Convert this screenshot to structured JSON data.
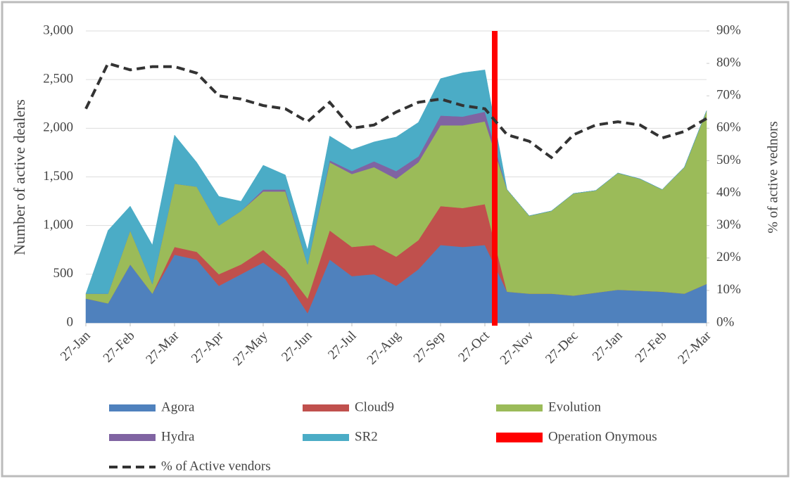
{
  "chart_data": {
    "type": "stacked-area",
    "y_axis_label": "Number of active dealers",
    "y2_axis_label": "% of active vednors",
    "categories": [
      "27-Jan",
      null,
      "27-Feb",
      null,
      "27-Mar",
      null,
      "27-Apr",
      null,
      "27-May",
      null,
      "27-Jun",
      null,
      "27-Jul",
      null,
      "27-Aug",
      null,
      "27-Sep",
      null,
      "27-Oct",
      null,
      "27-Nov",
      null,
      "27-Dec",
      null,
      "27-Jan",
      null,
      "27-Feb",
      null,
      "27-Mar"
    ],
    "series": [
      {
        "name": "Agora",
        "color": "#4f81bd",
        "values": [
          250,
          200,
          600,
          300,
          700,
          650,
          380,
          500,
          620,
          450,
          100,
          650,
          480,
          500,
          380,
          550,
          800,
          780,
          800,
          320,
          300,
          300,
          280,
          310,
          340,
          330,
          320,
          300,
          400
        ]
      },
      {
        "name": "Cloud9",
        "color": "#c0504d",
        "values": [
          0,
          0,
          0,
          0,
          80,
          80,
          120,
          100,
          130,
          100,
          150,
          300,
          300,
          300,
          300,
          300,
          400,
          400,
          420,
          0,
          0,
          0,
          0,
          0,
          0,
          0,
          0,
          0,
          0
        ]
      },
      {
        "name": "Evolution",
        "color": "#9bbb59",
        "values": [
          50,
          100,
          350,
          100,
          650,
          670,
          500,
          550,
          600,
          800,
          350,
          700,
          750,
          800,
          800,
          800,
          830,
          850,
          850,
          1050,
          800,
          850,
          1050,
          1050,
          1200,
          1150,
          1050,
          1300,
          1780
        ]
      },
      {
        "name": "Hydra",
        "color": "#8064a2",
        "values": [
          0,
          0,
          0,
          0,
          0,
          0,
          0,
          0,
          20,
          20,
          0,
          20,
          30,
          60,
          80,
          60,
          100,
          90,
          100,
          0,
          0,
          0,
          0,
          0,
          0,
          0,
          0,
          0,
          0
        ]
      },
      {
        "name": "SR2",
        "color": "#4bacc6",
        "values": [
          0,
          650,
          250,
          400,
          500,
          250,
          300,
          100,
          250,
          150,
          150,
          250,
          220,
          200,
          350,
          350,
          380,
          450,
          430,
          0,
          0,
          0,
          0,
          0,
          0,
          0,
          0,
          0,
          0
        ]
      },
      {
        "name": "Operation Onymous",
        "color": "#ff0000",
        "type": "vline"
      },
      {
        "name": "% of Active vendors",
        "color": "#333333",
        "type": "line",
        "dashed": true,
        "axis": "y2",
        "values": [
          66,
          80,
          78,
          79,
          79,
          77,
          70,
          69,
          67,
          66,
          62,
          68,
          60,
          61,
          65,
          68,
          69,
          67,
          66,
          58,
          56,
          51,
          58,
          61,
          62,
          61,
          57,
          59,
          63
        ]
      }
    ],
    "ylim": [
      0,
      3000
    ],
    "yticks": [
      0,
      500,
      {
        "value": 1000,
        "label": "1,000"
      },
      {
        "value": 1500,
        "label": "1,500"
      },
      {
        "value": 2000,
        "label": "2,000"
      },
      {
        "value": 2500,
        "label": "2,500"
      },
      {
        "value": 3000,
        "label": "3,000"
      }
    ],
    "y2lim": [
      0,
      90
    ],
    "y2ticks": [
      {
        "value": 0,
        "label": "0%"
      },
      {
        "value": 10,
        "label": "10%"
      },
      {
        "value": 20,
        "label": "20%"
      },
      {
        "value": 30,
        "label": "30%"
      },
      {
        "value": 40,
        "label": "40%"
      },
      {
        "value": 50,
        "label": "50%"
      },
      {
        "value": 60,
        "label": "60%"
      },
      {
        "value": 70,
        "label": "70%"
      },
      {
        "value": 80,
        "label": "80%"
      },
      {
        "value": 90,
        "label": "90%"
      }
    ],
    "grid": true
  }
}
